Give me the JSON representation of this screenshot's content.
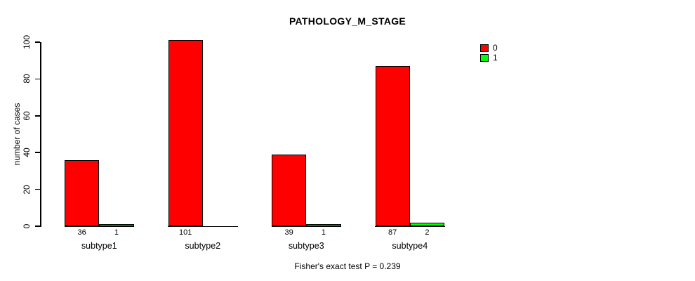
{
  "chart_data": {
    "type": "bar",
    "title": "PATHOLOGY_M_STAGE",
    "xlabel": "",
    "ylabel": "number of cases",
    "categories": [
      "subtype1",
      "subtype2",
      "subtype3",
      "subtype4"
    ],
    "series": [
      {
        "name": "0",
        "color": "#FF0000",
        "values": [
          36,
          101,
          39,
          87
        ]
      },
      {
        "name": "1",
        "color": "#00FF00",
        "values": [
          1,
          0,
          1,
          2
        ]
      }
    ],
    "bar_value_labels": [
      [
        "36",
        "1"
      ],
      [
        "101",
        ""
      ],
      [
        "39",
        "1"
      ],
      [
        "87",
        "2"
      ]
    ],
    "yticks": [
      0,
      20,
      40,
      60,
      80,
      100
    ],
    "ylim": [
      0,
      100
    ],
    "grid": false,
    "legend": {
      "position": "top-right",
      "entries": [
        {
          "label": "0",
          "color": "#FF0000"
        },
        {
          "label": "1",
          "color": "#00FF00"
        }
      ]
    },
    "annotation": "Fisher's exact test P = 0.239"
  }
}
